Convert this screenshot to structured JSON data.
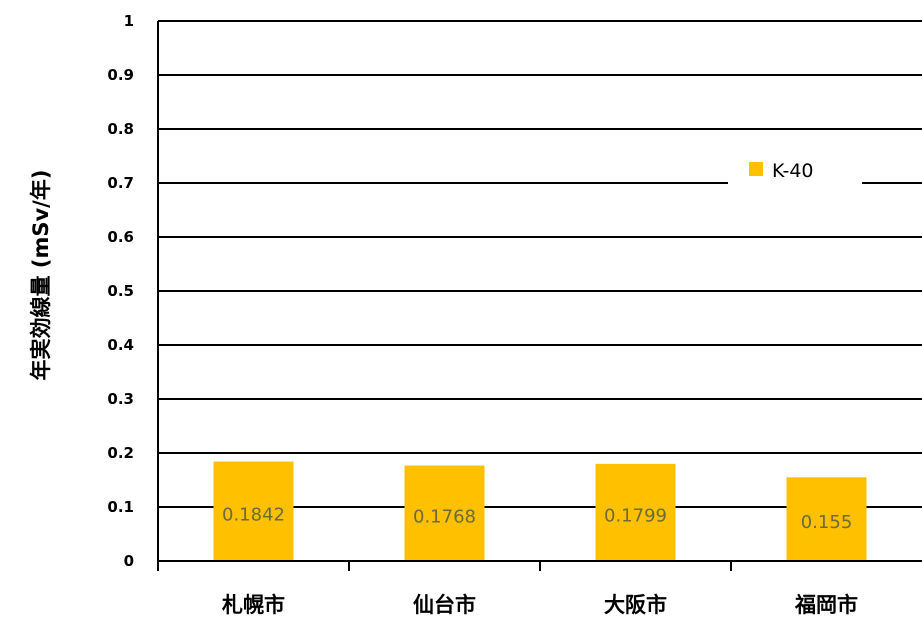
{
  "chart_data": {
    "type": "bar",
    "title": "",
    "xlabel": "",
    "ylabel": "年実効線量 (mSv/年)",
    "ylim": [
      0,
      1
    ],
    "yticks": [
      "0",
      "0.1",
      "0.2",
      "0.3",
      "0.4",
      "0.5",
      "0.6",
      "0.7",
      "0.8",
      "0.9",
      "1"
    ],
    "categories": [
      "札幌市",
      "仙台市",
      "大阪市",
      "福岡市"
    ],
    "series": [
      {
        "name": "K-40",
        "color": "#FFC000",
        "values": [
          0.1842,
          0.1768,
          0.1799,
          0.155
        ],
        "labels": [
          "0.1842",
          "0.1768",
          "0.1799",
          "0.155"
        ]
      }
    ],
    "grid": true,
    "legend": "right"
  }
}
